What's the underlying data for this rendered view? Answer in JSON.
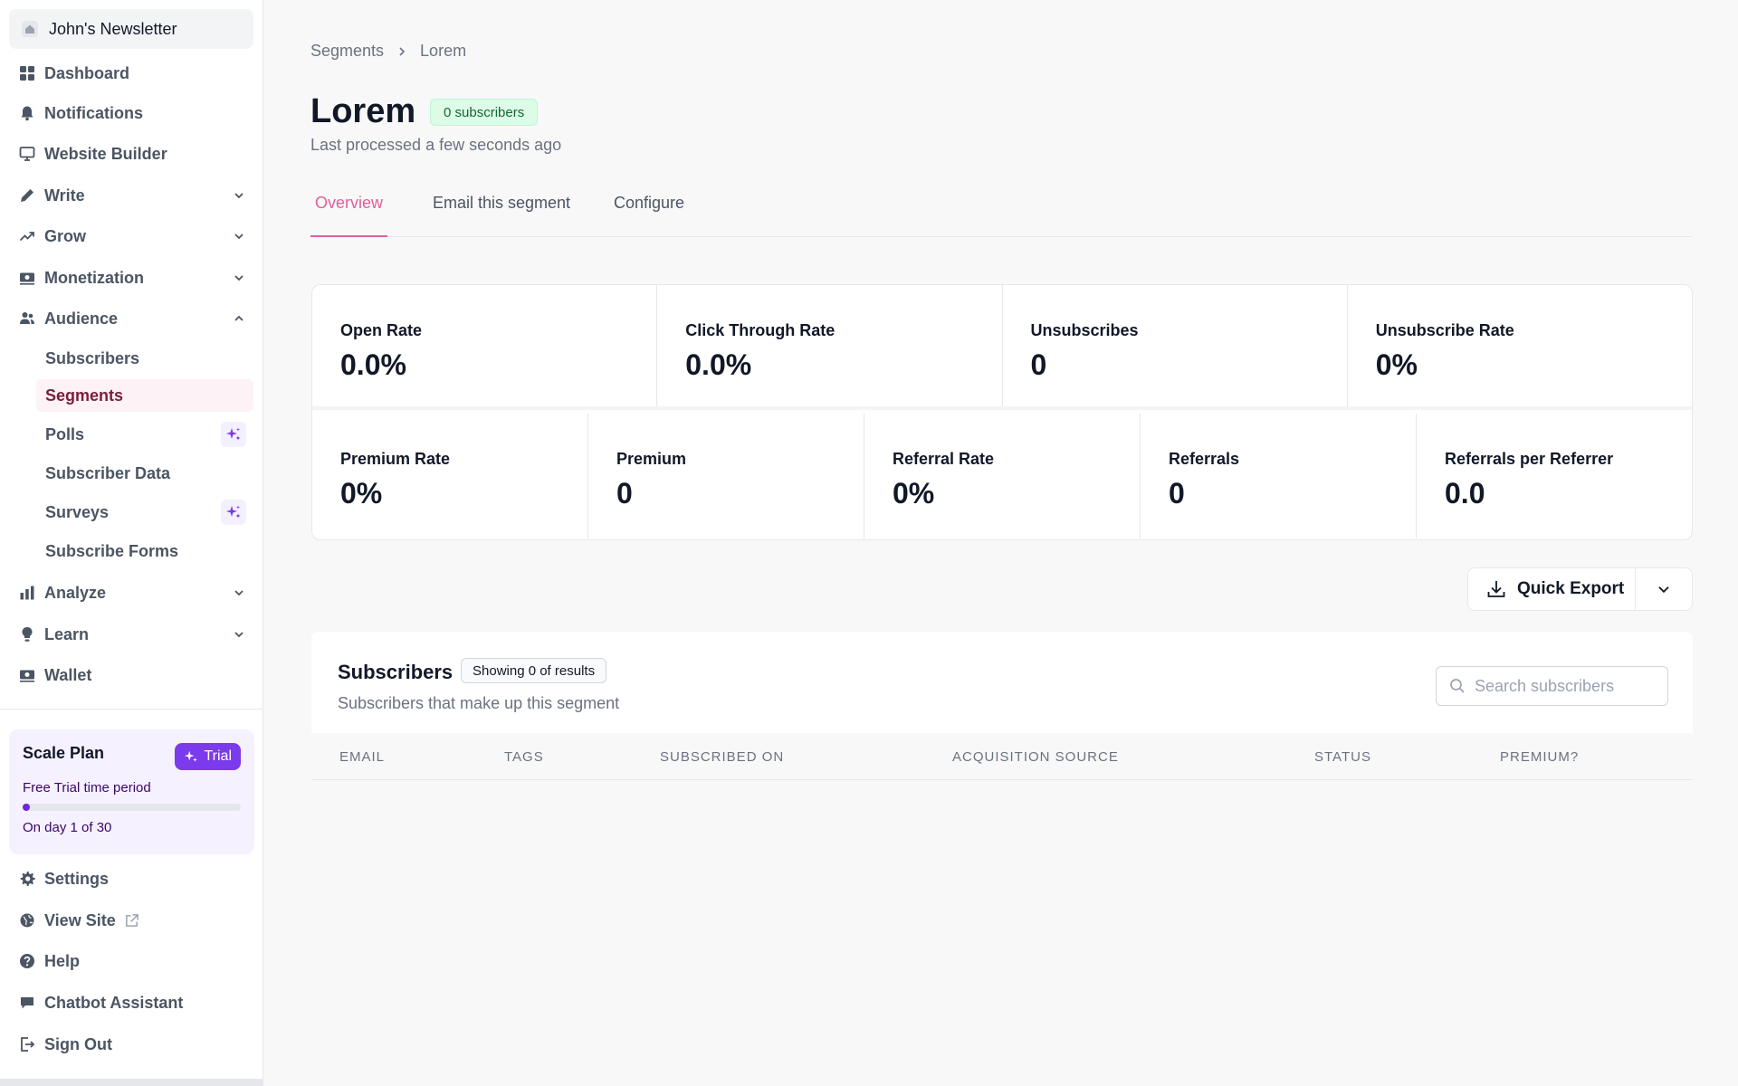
{
  "sidebar": {
    "publication": "John's Newsletter",
    "nav": [
      {
        "label": "Dashboard",
        "icon": "dashboard-icon"
      },
      {
        "label": "Notifications",
        "icon": "bell-icon"
      },
      {
        "label": "Website Builder",
        "icon": "monitor-icon"
      },
      {
        "label": "Write",
        "icon": "pencil-icon"
      },
      {
        "label": "Grow",
        "icon": "trending-up-icon"
      },
      {
        "label": "Monetization",
        "icon": "cash-icon"
      },
      {
        "label": "Audience",
        "icon": "users-icon"
      }
    ],
    "audience_items": [
      "Subscribers",
      "Segments",
      "Polls",
      "Subscriber Data",
      "Surveys",
      "Subscribe Forms"
    ],
    "nav2": [
      {
        "label": "Analyze",
        "icon": "chart-bar-icon"
      },
      {
        "label": "Learn",
        "icon": "lightbulb-icon"
      },
      {
        "label": "Wallet",
        "icon": "wallet-icon"
      }
    ],
    "plan": {
      "title": "Scale Plan",
      "badge": "Trial",
      "subtitle": "Free Trial time period",
      "day_text": "On day 1 of 30",
      "progress_fraction": 0.033
    },
    "bottom": [
      {
        "label": "Settings",
        "icon": "gear-icon"
      },
      {
        "label": "View Site",
        "icon": "globe-icon"
      },
      {
        "label": "Help",
        "icon": "help-circle-icon"
      },
      {
        "label": "Chatbot Assistant",
        "icon": "chat-icon"
      },
      {
        "label": "Sign Out",
        "icon": "sign-out-icon"
      }
    ]
  },
  "breadcrumb": [
    "Segments",
    "Lorem"
  ],
  "page": {
    "title": "Lorem",
    "subscriber_badge": "0 subscribers",
    "last_processed": "Last processed a few seconds ago"
  },
  "tabs": [
    "Overview",
    "Email this segment",
    "Configure"
  ],
  "stats_row1": [
    {
      "label": "Open Rate",
      "value": "0.0%"
    },
    {
      "label": "Click Through Rate",
      "value": "0.0%"
    },
    {
      "label": "Unsubscribes",
      "value": "0"
    },
    {
      "label": "Unsubscribe Rate",
      "value": "0%"
    }
  ],
  "stats_row2": [
    {
      "label": "Premium Rate",
      "value": "0%"
    },
    {
      "label": "Premium",
      "value": "0"
    },
    {
      "label": "Referral Rate",
      "value": "0%"
    },
    {
      "label": "Referrals",
      "value": "0"
    },
    {
      "label": "Referrals per Referrer",
      "value": "0.0"
    }
  ],
  "export": {
    "label": "Quick Export"
  },
  "subscribers": {
    "title": "Subscribers",
    "showing": "Showing 0 of results",
    "description": "Subscribers that make up this segment",
    "search_placeholder": "Search subscribers",
    "search_value": "",
    "columns": [
      "EMAIL",
      "TAGS",
      "SUBSCRIBED ON",
      "ACQUISITION SOURCE",
      "STATUS",
      "PREMIUM?"
    ]
  },
  "colors": {
    "accent_pink": "#e0609a",
    "trial_purple": "#7c3aed",
    "badge_green": "#dcfce7"
  }
}
